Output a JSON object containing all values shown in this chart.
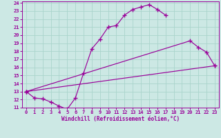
{
  "xlabel": "Windchill (Refroidissement éolien,°C)",
  "bg_color": "#cce8e4",
  "line_color": "#990099",
  "grid_color": "#aad4cc",
  "xlim": [
    -0.5,
    23.5
  ],
  "ylim": [
    11,
    24.2
  ],
  "xticks": [
    0,
    1,
    2,
    3,
    4,
    5,
    6,
    7,
    8,
    9,
    10,
    11,
    12,
    13,
    14,
    15,
    16,
    17,
    18,
    19,
    20,
    21,
    22,
    23
  ],
  "yticks": [
    11,
    12,
    13,
    14,
    15,
    16,
    17,
    18,
    19,
    20,
    21,
    22,
    23,
    24
  ],
  "curve1_x": [
    0,
    1,
    2,
    3,
    4,
    5,
    6,
    7,
    8,
    9,
    10,
    11,
    12,
    13,
    14,
    15,
    16,
    17
  ],
  "curve1_y": [
    13.0,
    12.2,
    12.1,
    11.7,
    11.2,
    10.8,
    12.2,
    15.3,
    18.3,
    19.5,
    21.0,
    21.2,
    22.5,
    23.2,
    23.5,
    23.8,
    23.2,
    22.5
  ],
  "curve2_x": [
    0,
    20,
    21,
    22,
    23
  ],
  "curve2_y": [
    13.0,
    19.3,
    18.5,
    17.9,
    16.2
  ],
  "curve3_x": [
    0,
    23
  ],
  "curve3_y": [
    13.0,
    16.2
  ]
}
